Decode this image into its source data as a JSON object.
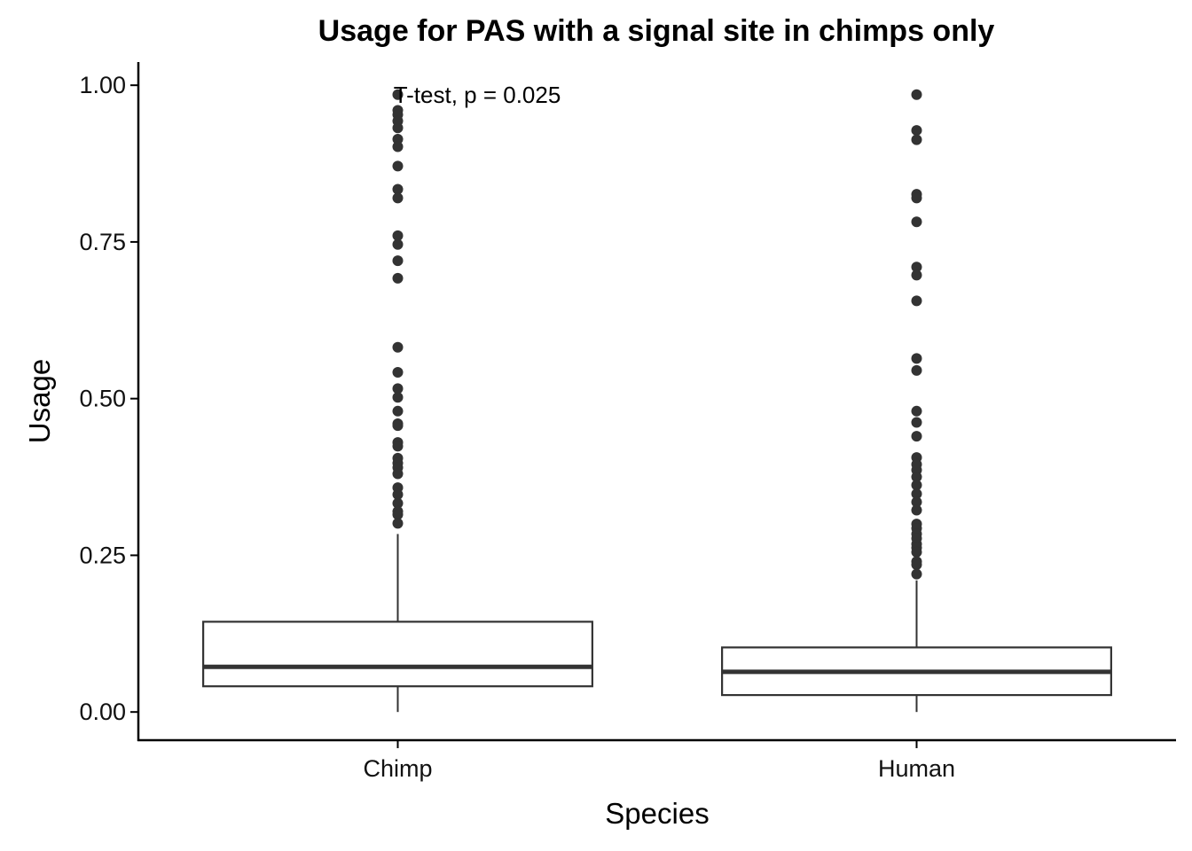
{
  "chart_data": {
    "type": "boxplot",
    "title": "Usage for PAS with a signal site in chimps only",
    "xlabel": "Species",
    "ylabel": "Usage",
    "ylim": [
      -0.045,
      1.037
    ],
    "yticks": [
      0.0,
      0.25,
      0.5,
      0.75,
      1.0
    ],
    "ytick_labels": [
      "0.00",
      "0.25",
      "0.50",
      "0.75",
      "1.00"
    ],
    "categories": [
      "Chimp",
      "Human"
    ],
    "grid": false,
    "legend": "none",
    "annotation": "T-test, p = 0.025",
    "colors": {
      "box": "#333333",
      "point": "#333333",
      "axis": "#000000"
    },
    "series": [
      {
        "category": "Chimp",
        "whisker_low": 0.0,
        "q1": 0.041,
        "median": 0.072,
        "q3": 0.144,
        "whisker_high": 0.284,
        "outliers": [
          0.985,
          0.96,
          0.953,
          0.943,
          0.932,
          0.914,
          0.902,
          0.871,
          0.834,
          0.82,
          0.76,
          0.746,
          0.72,
          0.692,
          0.582,
          0.542,
          0.516,
          0.502,
          0.48,
          0.46,
          0.457,
          0.43,
          0.424,
          0.405,
          0.397,
          0.39,
          0.38,
          0.358,
          0.347,
          0.333,
          0.32,
          0.315,
          0.301
        ]
      },
      {
        "category": "Human",
        "whisker_low": 0.0,
        "q1": 0.027,
        "median": 0.064,
        "q3": 0.103,
        "whisker_high": 0.21,
        "outliers": [
          0.985,
          0.928,
          0.913,
          0.826,
          0.82,
          0.782,
          0.71,
          0.697,
          0.656,
          0.564,
          0.545,
          0.48,
          0.462,
          0.44,
          0.406,
          0.395,
          0.386,
          0.375,
          0.362,
          0.348,
          0.335,
          0.322,
          0.3,
          0.293,
          0.284,
          0.277,
          0.268,
          0.262,
          0.255,
          0.24,
          0.235,
          0.22
        ]
      }
    ]
  }
}
